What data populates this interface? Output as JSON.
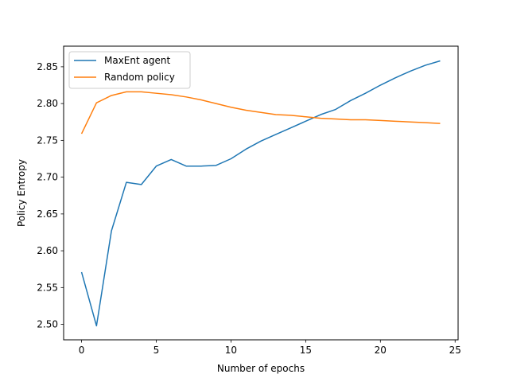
{
  "chart_data": {
    "type": "line",
    "xlabel": "Number of epochs",
    "ylabel": "Policy Entropy",
    "xlim": [
      -1.2,
      25.2
    ],
    "ylim": [
      2.479,
      2.878
    ],
    "xticks": [
      0,
      5,
      10,
      15,
      20,
      25
    ],
    "yticks": [
      2.5,
      2.55,
      2.6,
      2.65,
      2.7,
      2.75,
      2.8,
      2.85
    ],
    "xtick_labels": [
      "0",
      "5",
      "10",
      "15",
      "20",
      "25"
    ],
    "ytick_labels": [
      "2.50",
      "2.55",
      "2.60",
      "2.65",
      "2.70",
      "2.75",
      "2.80",
      "2.85"
    ],
    "grid": false,
    "legend_position": "top-left",
    "x": [
      0,
      1,
      2,
      3,
      4,
      5,
      6,
      7,
      8,
      9,
      10,
      11,
      12,
      13,
      14,
      15,
      16,
      17,
      18,
      19,
      20,
      21,
      22,
      23,
      24
    ],
    "series": [
      {
        "name": "MaxEnt agent",
        "color": "#1f77b4",
        "values": [
          2.571,
          2.498,
          2.627,
          2.693,
          2.69,
          2.715,
          2.724,
          2.715,
          2.715,
          2.716,
          2.725,
          2.738,
          2.749,
          2.758,
          2.767,
          2.776,
          2.785,
          2.792,
          2.804,
          2.814,
          2.825,
          2.835,
          2.844,
          2.852,
          2.858
        ]
      },
      {
        "name": "Random policy",
        "color": "#ff7f0e",
        "values": [
          2.759,
          2.801,
          2.811,
          2.816,
          2.816,
          2.814,
          2.812,
          2.809,
          2.805,
          2.8,
          2.795,
          2.791,
          2.788,
          2.785,
          2.784,
          2.782,
          2.78,
          2.779,
          2.778,
          2.778,
          2.777,
          2.776,
          2.775,
          2.774,
          2.773
        ]
      }
    ]
  }
}
